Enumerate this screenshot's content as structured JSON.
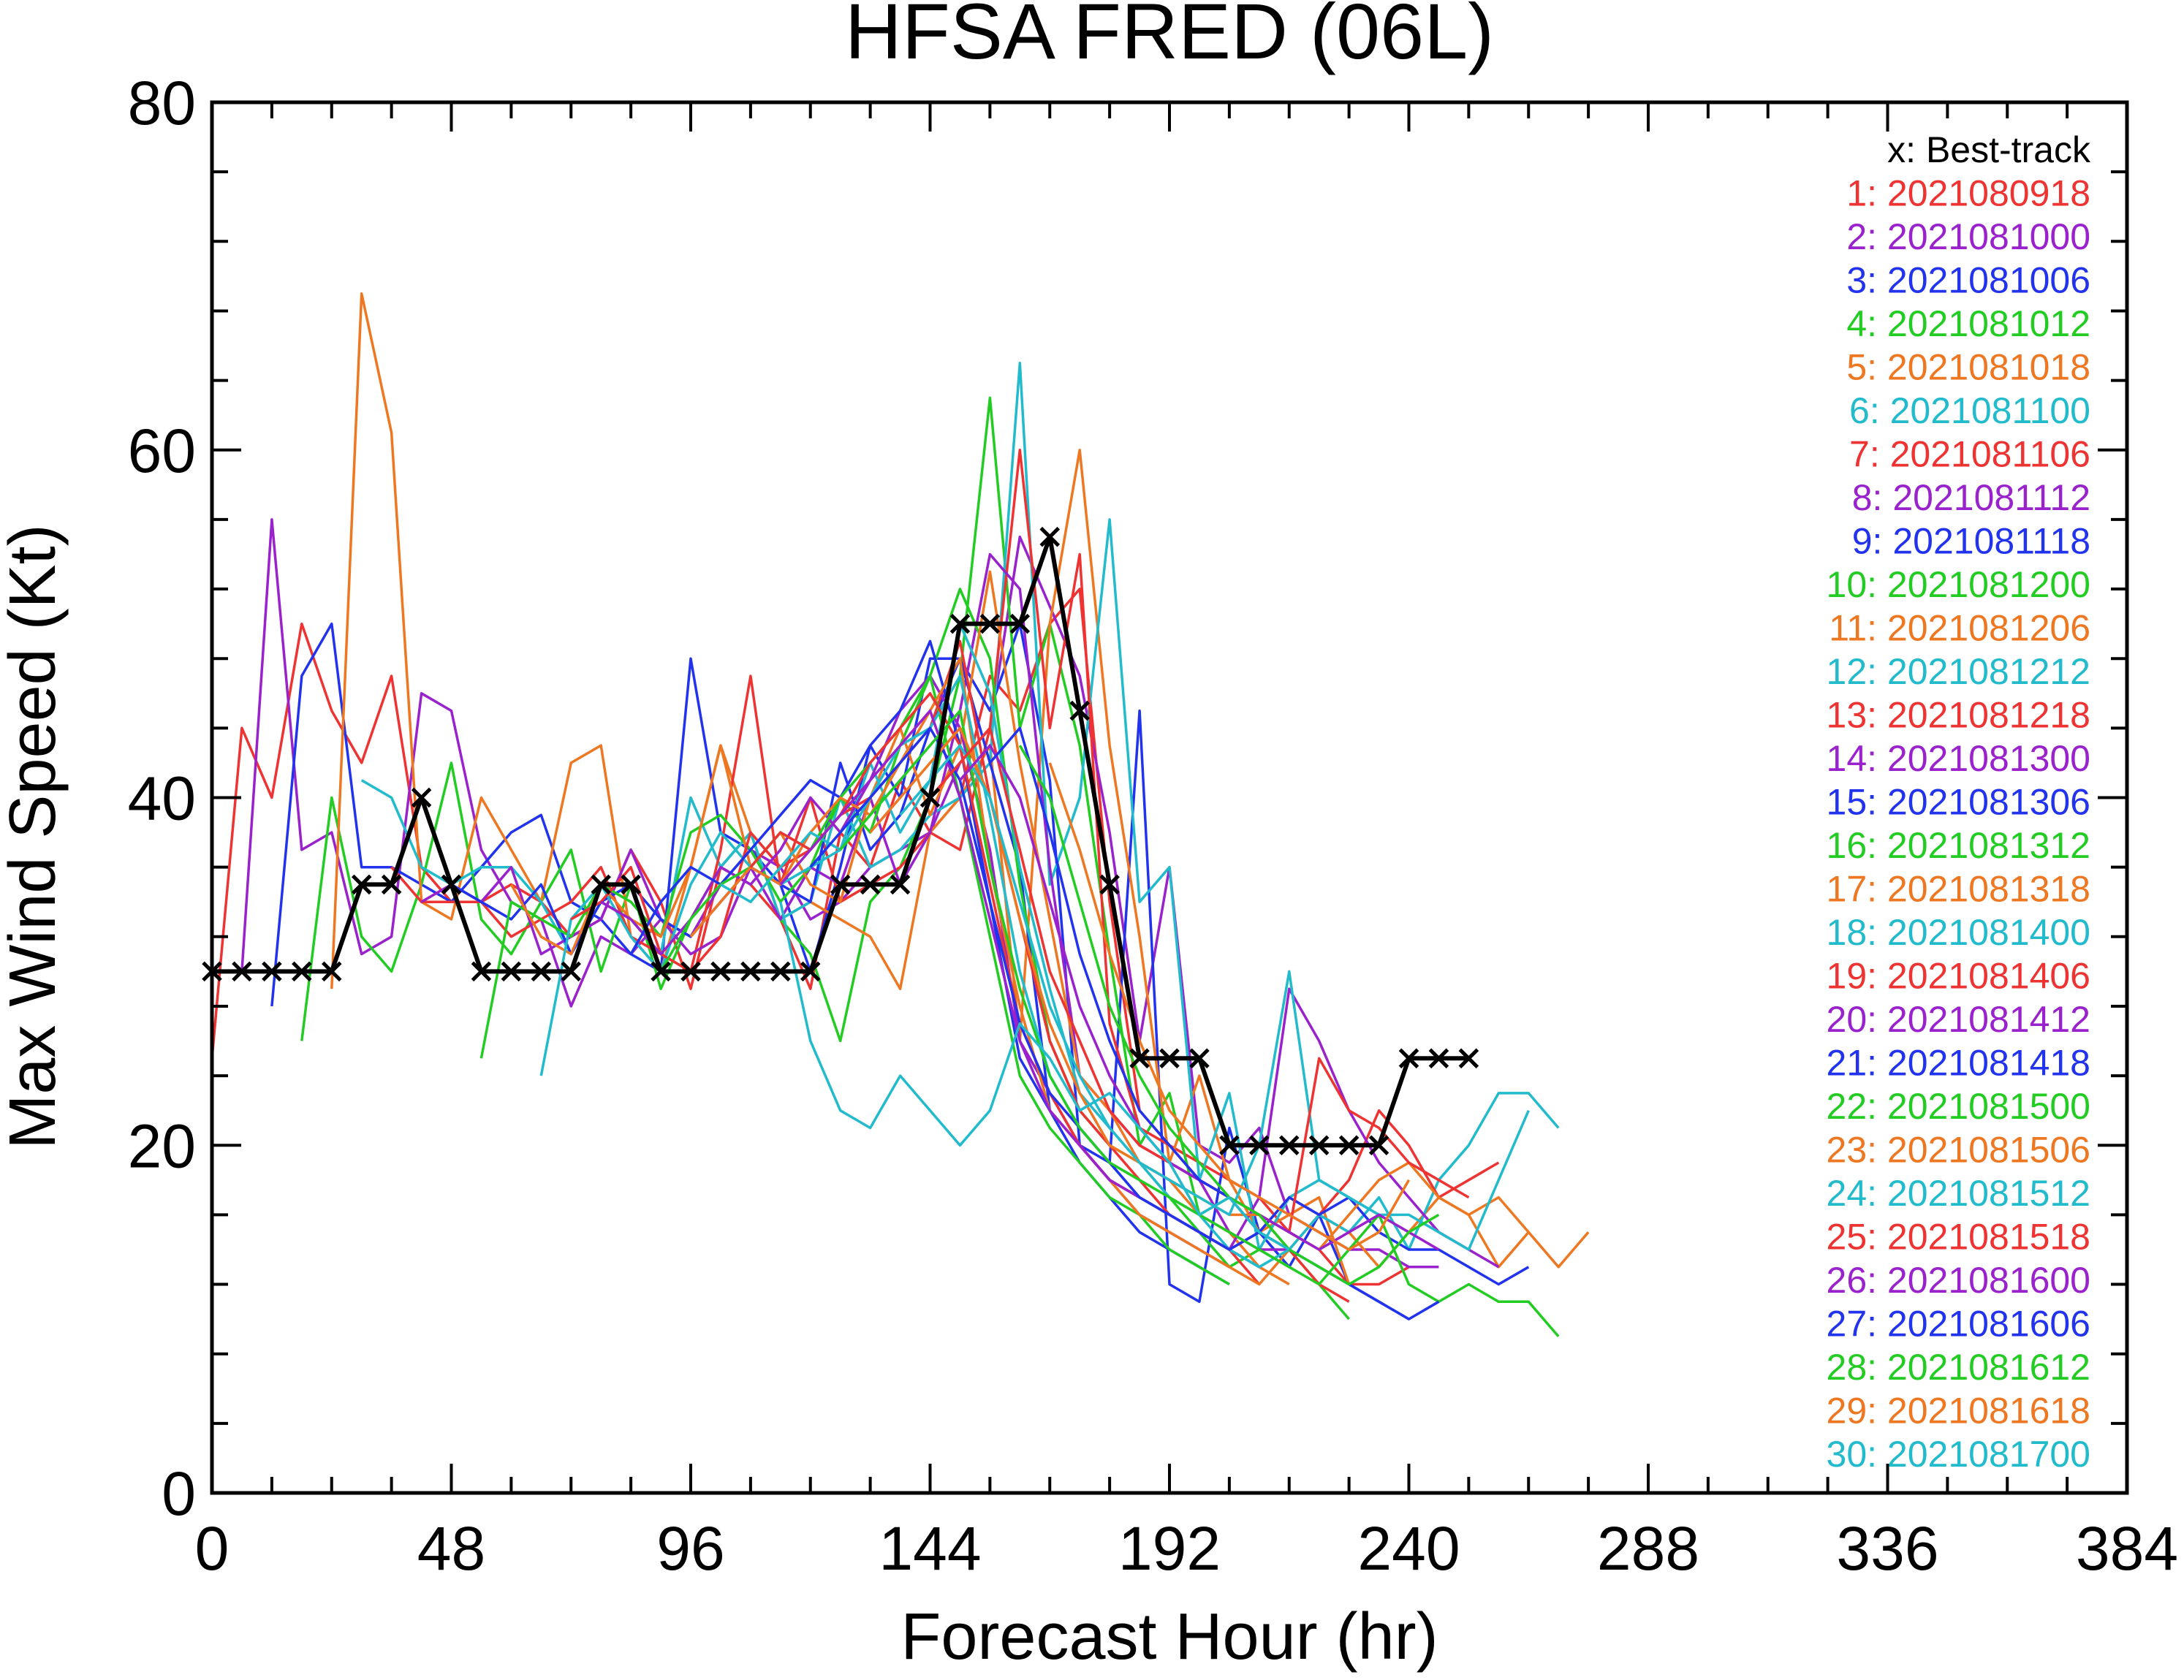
{
  "chart_data": {
    "type": "line",
    "title": "HFSA  FRED (06L)",
    "xlabel": "Forecast Hour (hr)",
    "ylabel": "Max Wind Speed (Kt)",
    "xlim": [
      0,
      384
    ],
    "ylim": [
      0,
      80
    ],
    "xticks": [
      0,
      48,
      96,
      144,
      192,
      240,
      288,
      336,
      384
    ],
    "yticks": [
      0,
      20,
      40,
      60,
      80
    ],
    "xtick_labels": [
      "0",
      "48",
      "96",
      "144",
      "192",
      "240",
      "288",
      "336",
      "384"
    ],
    "ytick_labels": [
      "0",
      "20",
      "40",
      "60",
      "80"
    ],
    "grid": false,
    "legend_placement": "top-right",
    "best_track": {
      "label": "x: Best-track",
      "color": "#000000",
      "x": [
        0,
        6,
        12,
        18,
        24,
        30,
        36,
        42,
        48,
        54,
        60,
        66,
        72,
        78,
        84,
        90,
        96,
        102,
        108,
        114,
        120,
        126,
        132,
        138,
        144,
        150,
        156,
        162,
        168,
        174,
        180,
        186,
        192,
        198,
        204,
        210,
        216,
        222,
        228,
        234,
        240,
        246,
        252
      ],
      "y": [
        30,
        30,
        30,
        30,
        30,
        35,
        35,
        40,
        35,
        30,
        30,
        30,
        30,
        35,
        35,
        30,
        30,
        30,
        30,
        30,
        30,
        35,
        35,
        35,
        40,
        50,
        50,
        50,
        55,
        45,
        35,
        25,
        25,
        25,
        20,
        20,
        20,
        20,
        20,
        20,
        25,
        25,
        25
      ]
    },
    "series": [
      {
        "label": "1: 2021080918",
        "color": "#ee3333",
        "start": 0,
        "values": [
          25,
          44,
          40,
          50,
          45,
          42,
          47,
          36,
          34,
          34,
          35,
          34,
          32,
          33,
          37,
          34,
          29,
          36,
          35,
          33,
          29,
          38,
          36,
          41,
          38,
          40,
          47,
          45,
          50,
          52,
          34,
          22,
          20,
          19,
          18,
          17,
          15,
          14,
          12,
          12,
          13
        ]
      },
      {
        "label": "2: 2021081000",
        "color": "#9922cc",
        "start": 6,
        "values": [
          30,
          56,
          37,
          38,
          31,
          32,
          46,
          45,
          37,
          34,
          33,
          28,
          32,
          31,
          33,
          32,
          35,
          37,
          36,
          33,
          34,
          36,
          37,
          38,
          42,
          44,
          55,
          51,
          47,
          38,
          26,
          36,
          20,
          19,
          21,
          16,
          15,
          14,
          14,
          13,
          13
        ]
      },
      {
        "label": "3: 2021081006",
        "color": "#2233ee",
        "start": 12,
        "values": [
          28,
          47,
          50,
          36,
          36,
          35,
          34,
          36,
          38,
          39,
          34,
          33,
          31,
          30,
          48,
          38,
          37,
          35,
          30,
          36,
          43,
          40,
          48,
          48,
          45,
          50,
          41,
          20,
          19,
          45,
          12,
          11,
          21,
          15,
          13,
          16,
          12,
          11,
          10
        ]
      },
      {
        "label": "4: 2021081012",
        "color": "#22cc22",
        "start": 18,
        "values": [
          26,
          40,
          32,
          30,
          35,
          42,
          33,
          31,
          34,
          37,
          30,
          35,
          29,
          33,
          36,
          38,
          33,
          31,
          26,
          34,
          36,
          40,
          47,
          63,
          44,
          50,
          43,
          31,
          20,
          23,
          16,
          17,
          15,
          14,
          12,
          10
        ]
      },
      {
        "label": "5: 2021081018",
        "color": "#ee7722",
        "start": 24,
        "values": [
          29,
          69,
          61,
          34,
          33,
          40,
          37,
          34,
          42,
          43,
          32,
          30,
          36,
          43,
          38,
          33,
          34,
          33,
          32,
          29,
          38,
          40,
          43,
          26,
          50,
          60,
          43,
          32,
          19,
          24,
          18,
          15,
          16,
          17,
          12
        ]
      },
      {
        "label": "6: 2021081100",
        "color": "#22bbcc",
        "start": 30,
        "values": [
          41,
          40,
          36,
          35,
          36,
          36,
          34,
          31,
          34,
          33,
          31,
          40,
          36,
          38,
          33,
          34,
          40,
          36,
          37,
          39,
          40,
          42,
          65,
          35,
          40,
          56,
          34,
          36,
          18,
          23,
          14,
          17,
          18,
          17,
          16
        ]
      },
      {
        "label": "7: 2021081106",
        "color": "#ee3333",
        "start": 36,
        "values": [
          36,
          34,
          34,
          34,
          32,
          33,
          34,
          36,
          32,
          31,
          30,
          37,
          47,
          35,
          40,
          34,
          35,
          36,
          38,
          37,
          44,
          60,
          44,
          54,
          27,
          21,
          20,
          18,
          17,
          16,
          14,
          12,
          11
        ]
      },
      {
        "label": "8: 2021081112",
        "color": "#9922cc",
        "start": 42,
        "values": [
          34,
          35,
          34,
          36,
          31,
          32,
          33,
          37,
          33,
          31,
          32,
          36,
          33,
          36,
          35,
          40,
          35,
          38,
          45,
          54,
          52,
          36,
          24,
          22,
          20,
          19,
          18,
          15,
          14,
          14
        ]
      },
      {
        "label": "9: 2021081118",
        "color": "#2233ee",
        "start": 48,
        "values": [
          35,
          34,
          33,
          35,
          31,
          34,
          35,
          33,
          32,
          34,
          36,
          35,
          34,
          42,
          37,
          39,
          44,
          48,
          42,
          36,
          22,
          20,
          18,
          17,
          16,
          15,
          14,
          13
        ]
      },
      {
        "label": "10: 2021081200",
        "color": "#22cc22",
        "start": 54,
        "values": [
          25,
          34,
          33,
          32,
          35,
          34,
          32,
          38,
          39,
          37,
          34,
          36,
          40,
          38,
          43,
          47,
          52,
          48,
          35,
          26,
          22,
          20,
          19,
          17,
          15,
          13,
          14,
          13
        ]
      },
      {
        "label": "11: 2021081206",
        "color": "#ee7722",
        "start": 60,
        "values": [
          35,
          32,
          31,
          35,
          33,
          32,
          36,
          43,
          36,
          38,
          35,
          34,
          40,
          44,
          39,
          43,
          53,
          42,
          33,
          24,
          22,
          19,
          18,
          16,
          15,
          13,
          12
        ]
      },
      {
        "label": "12: 2021081212",
        "color": "#22bbcc",
        "start": 66,
        "values": [
          24,
          33,
          35,
          32,
          30,
          35,
          38,
          36,
          35,
          36,
          37,
          42,
          38,
          41,
          50,
          46,
          36,
          29,
          23,
          21,
          19,
          17,
          16,
          14,
          13
        ]
      },
      {
        "label": "13: 2021081218",
        "color": "#ee3333",
        "start": 72,
        "values": [
          33,
          34,
          36,
          31,
          30,
          32,
          38,
          36,
          37,
          39,
          40,
          42,
          44,
          49,
          40,
          33,
          26,
          22,
          20,
          18,
          16,
          15,
          14,
          12
        ]
      },
      {
        "label": "14: 2021081300",
        "color": "#9922cc",
        "start": 78,
        "values": [
          34,
          33,
          31,
          33,
          36,
          35,
          37,
          40,
          38,
          41,
          45,
          47,
          44,
          37,
          26,
          23,
          20,
          18,
          16,
          15,
          14,
          13
        ]
      },
      {
        "label": "15: 2021081306",
        "color": "#2233ee",
        "start": 84,
        "values": [
          31,
          34,
          36,
          35,
          37,
          39,
          41,
          40,
          43,
          45,
          49,
          43,
          34,
          25,
          22,
          19,
          17,
          15,
          14,
          13,
          12
        ]
      },
      {
        "label": "16: 2021081312",
        "color": "#22cc22",
        "start": 90,
        "values": [
          30,
          33,
          35,
          36,
          38,
          37,
          40,
          42,
          44,
          47,
          40,
          32,
          24,
          21,
          19,
          17,
          16,
          14,
          13,
          12
        ]
      },
      {
        "label": "17: 2021081318",
        "color": "#ee7722",
        "start": 96,
        "values": [
          32,
          34,
          36,
          35,
          38,
          40,
          39,
          42,
          45,
          48,
          36,
          28,
          22,
          20,
          18,
          16,
          15,
          14,
          13,
          12,
          14,
          16,
          15,
          13,
          15,
          17,
          16,
          13,
          15
        ]
      },
      {
        "label": "18: 2021081400",
        "color": "#22bbcc",
        "start": 102,
        "values": [
          35,
          34,
          36,
          38,
          37,
          40,
          43,
          44,
          47,
          39,
          30,
          24,
          21,
          19,
          17,
          16,
          15,
          14,
          13,
          14,
          16,
          15,
          17,
          14,
          18,
          20,
          23,
          23,
          21
        ]
      },
      {
        "label": "19: 2021081406",
        "color": "#ee3333",
        "start": 108,
        "values": [
          36,
          38,
          37,
          39,
          42,
          44,
          46,
          43,
          35,
          27,
          23,
          20,
          18,
          17,
          16,
          15,
          14,
          15,
          17,
          16,
          18,
          22,
          20,
          17,
          18,
          19
        ]
      },
      {
        "label": "20: 2021081412",
        "color": "#9922cc",
        "start": 114,
        "values": [
          35,
          37,
          39,
          41,
          43,
          45,
          40,
          33,
          26,
          22,
          20,
          18,
          17,
          16,
          15,
          14,
          17,
          29,
          26,
          22,
          19,
          17,
          15,
          14,
          13
        ]
      },
      {
        "label": "21: 2021081418",
        "color": "#2233ee",
        "start": 120,
        "values": [
          36,
          38,
          40,
          42,
          44,
          41,
          34,
          27,
          23,
          21,
          19,
          17,
          16,
          15,
          14,
          15,
          17,
          16,
          17,
          15,
          14,
          14,
          13,
          12,
          13
        ]
      },
      {
        "label": "22: 2021081500",
        "color": "#22cc22",
        "start": 126,
        "values": [
          37,
          39,
          41,
          43,
          45,
          36,
          29,
          24,
          21,
          19,
          18,
          17,
          16,
          15,
          14,
          13,
          12,
          14,
          16,
          12,
          11,
          12,
          11,
          11,
          9
        ]
      },
      {
        "label": "23: 2021081506",
        "color": "#ee7722",
        "start": 132,
        "values": [
          38,
          40,
          42,
          44,
          40,
          33,
          27,
          23,
          20,
          19,
          18,
          17,
          16,
          16,
          15,
          14,
          16,
          18,
          19,
          17,
          16,
          17,
          15,
          13,
          15
        ]
      },
      {
        "label": "24: 2021081512",
        "color": "#22bbcc",
        "start": 138,
        "values": [
          39,
          41,
          43,
          40,
          34,
          28,
          24,
          21,
          19,
          18,
          17,
          16,
          20,
          30,
          18,
          17,
          16,
          16,
          15,
          14,
          18,
          22
        ]
      },
      {
        "label": "25: 2021081518",
        "color": "#ee3333",
        "start": 144,
        "values": [
          40,
          42,
          44,
          37,
          30,
          26,
          22,
          20,
          19,
          18,
          17,
          16,
          15,
          25,
          22,
          21,
          19,
          18,
          17
        ]
      },
      {
        "label": "26: 2021081600",
        "color": "#9922cc",
        "start": 150,
        "values": [
          41,
          43,
          40,
          34,
          28,
          24,
          21,
          19,
          18,
          17,
          16,
          15,
          14,
          15,
          16,
          15,
          14
        ]
      },
      {
        "label": "27: 2021081606",
        "color": "#2233ee",
        "start": 156,
        "values": [
          42,
          44,
          38,
          31,
          26,
          22,
          20,
          18,
          17,
          15,
          14,
          13,
          12,
          11,
          10,
          11
        ]
      },
      {
        "label": "28: 2021081612",
        "color": "#22cc22",
        "start": 162,
        "values": [
          43,
          40,
          34,
          28,
          24,
          21,
          19,
          17,
          16,
          14,
          13,
          12,
          13,
          15,
          16
        ]
      },
      {
        "label": "29: 2021081618",
        "color": "#ee7722",
        "start": 168,
        "values": [
          42,
          37,
          31,
          26,
          22,
          20,
          18,
          17,
          16,
          15,
          14,
          15,
          18
        ]
      },
      {
        "label": "30: 2021081700",
        "color": "#22bbcc",
        "start": 114,
        "values": [
          34,
          26,
          22,
          21,
          24,
          22,
          20,
          22,
          27,
          25,
          22,
          23,
          21,
          19,
          16,
          17,
          15,
          14
        ]
      }
    ]
  }
}
